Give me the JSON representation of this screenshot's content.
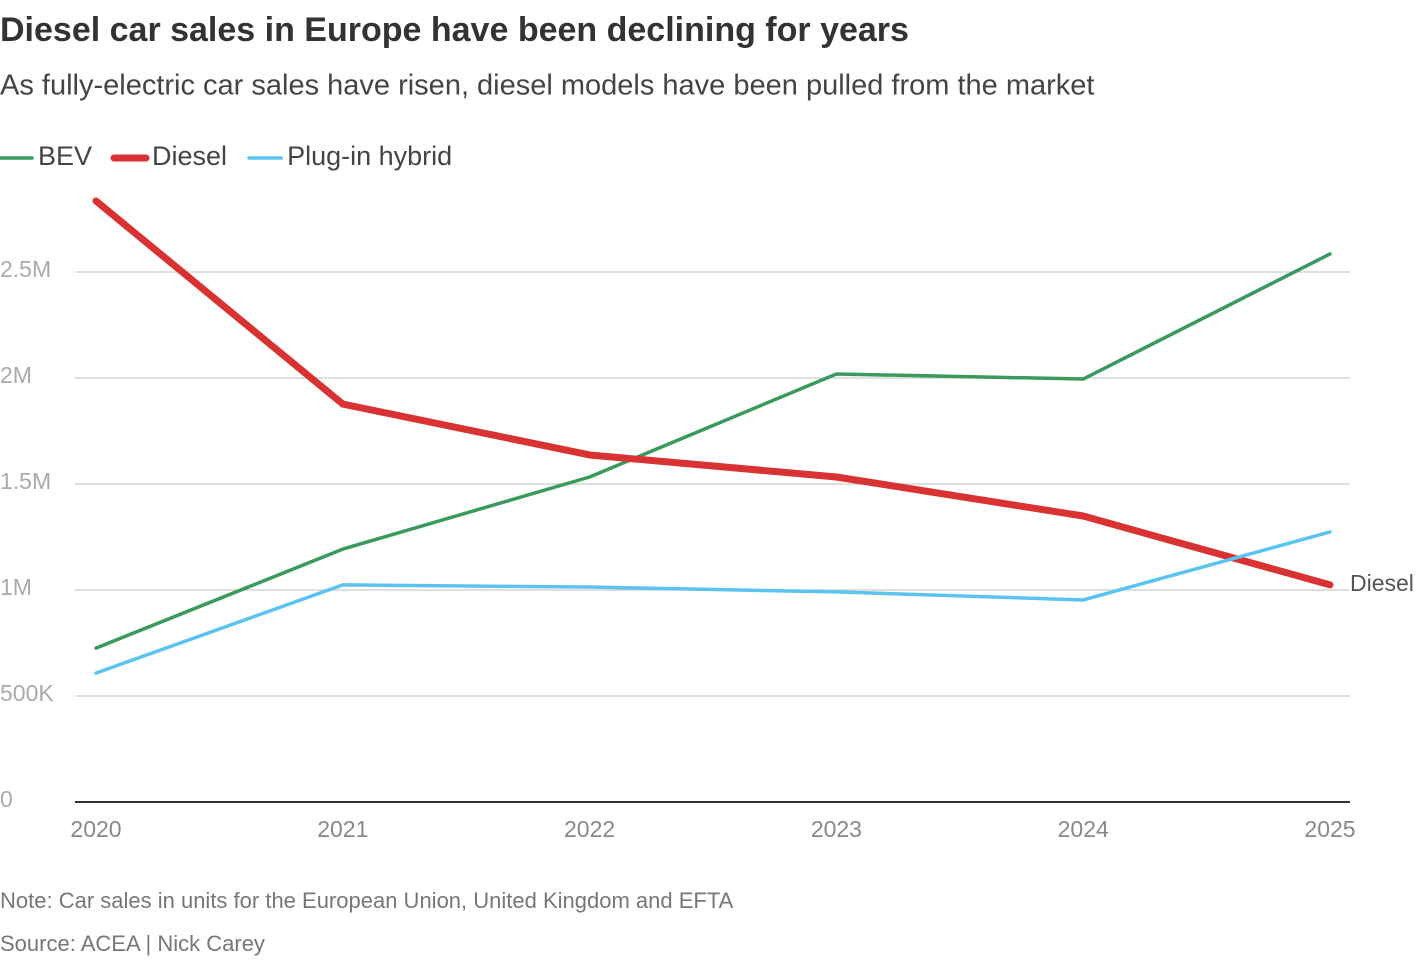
{
  "chart_data": {
    "type": "line",
    "title": "Diesel car sales in Europe have been declining for years",
    "subtitle": "As fully-electric car sales have risen, diesel models have been pulled from the market",
    "categories": [
      "2020",
      "2021",
      "2022",
      "2023",
      "2024",
      "2025"
    ],
    "series": [
      {
        "name": "BEV",
        "color": "#3a9a5b",
        "values": [
          726000,
          1193000,
          1533000,
          2019000,
          1995000,
          2585000
        ]
      },
      {
        "name": "Diesel",
        "color": "#d93232",
        "emphasized": true,
        "end_label": true,
        "values": [
          2835000,
          1877000,
          1637000,
          1533000,
          1349000,
          1024000
        ]
      },
      {
        "name": "Plug-in hybrid",
        "color": "#5bc3ef",
        "values": [
          608000,
          1024000,
          1014000,
          991000,
          953000,
          1274000
        ]
      }
    ],
    "ylim": [
      0,
      3000000
    ],
    "yticks": [
      0,
      {
        "value": 500000,
        "label": "500K"
      },
      {
        "value": 1000000,
        "label": "1M"
      },
      {
        "value": 1500000,
        "label": "1.5M"
      },
      {
        "value": 2000000,
        "label": "2M"
      },
      {
        "value": 2500000,
        "label": "2.5M"
      }
    ],
    "grid": true,
    "legend": "top-left",
    "note": "Note: Car sales in units for the European Union, United Kingdom and EFTA",
    "source": "Source: ACEA | Nick Carey"
  }
}
